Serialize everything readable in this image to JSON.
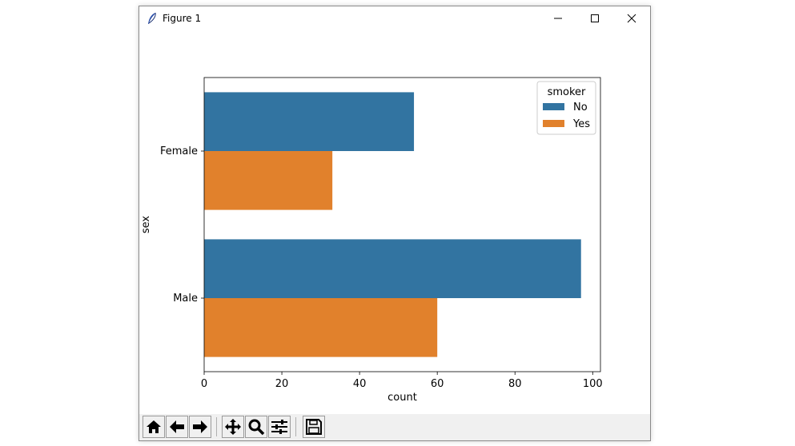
{
  "window": {
    "title": "Figure 1",
    "controls": [
      "minimize",
      "maximize",
      "close"
    ]
  },
  "toolbar": {
    "buttons": [
      {
        "id": "home",
        "icon": "home-icon"
      },
      {
        "id": "back",
        "icon": "arrow-left-icon"
      },
      {
        "id": "forward",
        "icon": "arrow-right-icon"
      },
      {
        "id": "pan",
        "icon": "move-icon"
      },
      {
        "id": "zoom",
        "icon": "magnifier-icon"
      },
      {
        "id": "configure",
        "icon": "sliders-icon"
      },
      {
        "id": "save",
        "icon": "floppy-disk-icon"
      }
    ]
  },
  "chart_data": {
    "type": "bar",
    "orientation": "horizontal",
    "categories": [
      "Female",
      "Male"
    ],
    "series": [
      {
        "name": "No",
        "values": [
          54,
          97
        ],
        "color": "#3274a1"
      },
      {
        "name": "Yes",
        "values": [
          33,
          60
        ],
        "color": "#e1812c"
      }
    ],
    "xlabel": "count",
    "ylabel": "sex",
    "xlim": [
      0,
      102
    ],
    "xticks": [
      0,
      20,
      40,
      60,
      80,
      100
    ],
    "legend": {
      "title": "smoker",
      "placement": "top-right"
    },
    "grid": false
  }
}
